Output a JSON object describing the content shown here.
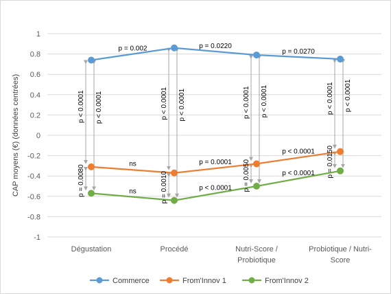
{
  "chart_data": {
    "type": "line",
    "ylabel": "CAP moyens (€) (données centrées)",
    "ylim": [
      -1,
      1
    ],
    "yticks": [
      "1",
      "0.8",
      "0.6",
      "0.4",
      "0.2",
      "0",
      "-0.2",
      "-0.4",
      "-0.6",
      "-0.8",
      "-1"
    ],
    "categories": [
      [
        "Dégustation"
      ],
      [
        "Procédé"
      ],
      [
        "Nutri-Score /",
        "Probiotique"
      ],
      [
        "Probiotique / Nutri-",
        "Score"
      ]
    ],
    "grid": true,
    "legend_position": "bottom",
    "series": [
      {
        "name": "Commerce",
        "color": "#5b9bd5",
        "values": [
          0.74,
          0.86,
          0.79,
          0.75
        ]
      },
      {
        "name": "From'Innov 1",
        "color": "#ed7d31",
        "values": [
          -0.31,
          -0.37,
          -0.28,
          -0.16
        ]
      },
      {
        "name": "From'Innov 2",
        "color": "#70ad47",
        "values": [
          -0.57,
          -0.64,
          -0.5,
          -0.35
        ]
      }
    ],
    "segment_annotations": {
      "commerce": [
        "p = 0.002",
        "p = 0.0220",
        "p = 0.0270"
      ],
      "innov1": [
        "ns",
        "p = 0.0001",
        "p < 0.0001"
      ],
      "innov2": [
        "ns",
        "p < 0.0001",
        "p < 0.0001"
      ]
    },
    "vertical_annotations": [
      {
        "commerce_innov1": "p < 0.0001",
        "commerce_innov2": "p < 0.0001",
        "innov1_innov2": "p = 0.0080"
      },
      {
        "commerce_innov1": "p < 0.0001",
        "commerce_innov2": "p < 0.0001",
        "innov1_innov2": "p = 0.0010"
      },
      {
        "commerce_innov1": "p < 0.0001",
        "commerce_innov2": "p < 0.0001",
        "innov1_innov2": "p = 0.0050"
      },
      {
        "commerce_innov1": "p < 0.0001",
        "commerce_innov2": "p < 0.0001",
        "innov1_innov2": "p = 0.0150"
      }
    ]
  },
  "colors": {
    "grid": "#d9d9d9",
    "arrow": "#a6a6a6"
  }
}
